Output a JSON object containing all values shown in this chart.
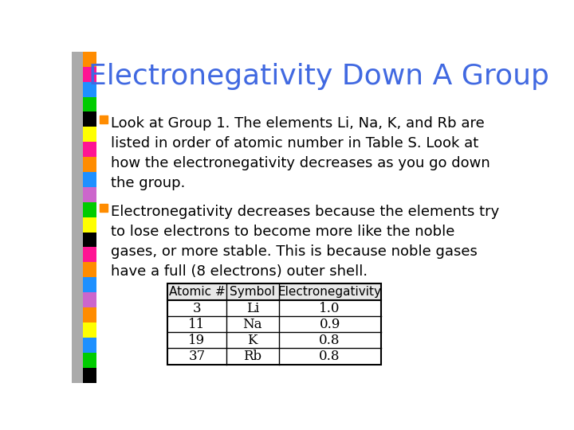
{
  "title": "Electronegativity Down A Group",
  "title_color": "#4169E1",
  "title_fontsize": 26,
  "background_color": "#FFFFFF",
  "bullet1": "Look at Group 1. The elements Li, Na, K, and Rb are\nlisted in order of atomic number in Table S. Look at\nhow the electronegativity decreases as you go down\nthe group.",
  "bullet2": "Electronegativity decreases because the elements try\nto lose electrons to become more like the noble\ngases, or more stable. This is because noble gases\nhave a full (8 electrons) outer shell.",
  "bullet_color": "#FF8C00",
  "text_color": "#000000",
  "text_fontsize": 13,
  "table_headers": [
    "Atomic #",
    "Symbol",
    "Electronegativity"
  ],
  "table_data": [
    [
      "3",
      "Li",
      "1.0"
    ],
    [
      "11",
      "Na",
      "0.9"
    ],
    [
      "19",
      "K",
      "0.8"
    ],
    [
      "37",
      "Rb",
      "0.8"
    ]
  ],
  "side_colors": [
    "#FF8C00",
    "#FF1493",
    "#1E90FF",
    "#00CC00",
    "#000000",
    "#FFFF00",
    "#FF1493",
    "#FF8C00",
    "#1E90FF",
    "#CC66CC",
    "#00CC00",
    "#FFFF00",
    "#000000",
    "#FF1493",
    "#FF8C00",
    "#1E90FF",
    "#CC66CC",
    "#FF8C00",
    "#FFFF00",
    "#1E90FF",
    "#00CC00",
    "#000000"
  ]
}
